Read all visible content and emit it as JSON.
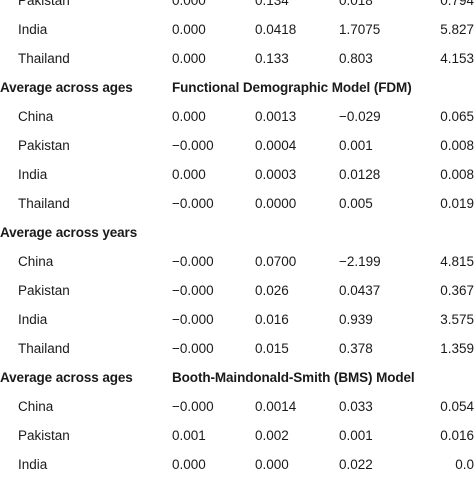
{
  "sections": [
    {
      "label": "",
      "model": "",
      "rows": [
        {
          "country": "Pakistan",
          "values": [
            "0.000",
            "0.134",
            "0.018",
            "0.794"
          ]
        },
        {
          "country": "India",
          "values": [
            "0.000",
            "0.0418",
            "1.7075",
            "5.827"
          ]
        },
        {
          "country": "Thailand",
          "values": [
            "0.000",
            "0.133",
            "0.803",
            "4.153"
          ]
        }
      ]
    },
    {
      "label": "Average across ages",
      "model": "Functional Demographic Model (FDM)",
      "rows": [
        {
          "country": "China",
          "values": [
            "0.000",
            "0.0013",
            "−0.029",
            "0.065"
          ]
        },
        {
          "country": "Pakistan",
          "values": [
            "−0.000",
            "0.0004",
            "0.001",
            "0.008"
          ]
        },
        {
          "country": "India",
          "values": [
            "0.000",
            "0.0003",
            "0.0128",
            "0.008"
          ]
        },
        {
          "country": "Thailand",
          "values": [
            "−0.000",
            "0.0000",
            "0.005",
            "0.019"
          ]
        }
      ]
    },
    {
      "label": "Average across years",
      "model": "",
      "rows": [
        {
          "country": "China",
          "values": [
            "−0.000",
            "0.0700",
            "−2.199",
            "4.815"
          ]
        },
        {
          "country": "Pakistan",
          "values": [
            "−0.000",
            "0.026",
            "0.0437",
            "0.367"
          ]
        },
        {
          "country": "India",
          "values": [
            "−0.000",
            "0.016",
            "0.939",
            "3.575"
          ]
        },
        {
          "country": "Thailand",
          "values": [
            "−0.000",
            "0.015",
            "0.378",
            "1.359"
          ]
        }
      ]
    },
    {
      "label": "Average across ages",
      "model": "Booth-Maindonald-Smith (BMS) Model",
      "rows": [
        {
          "country": "China",
          "values": [
            "−0.000",
            "0.0014",
            "0.033",
            "0.054"
          ]
        },
        {
          "country": "Pakistan",
          "values": [
            "0.001",
            "0.002",
            "0.001",
            "0.016"
          ]
        },
        {
          "country": "India",
          "values": [
            "0.000",
            "0.000",
            "0.022",
            "0.0"
          ]
        }
      ]
    }
  ]
}
